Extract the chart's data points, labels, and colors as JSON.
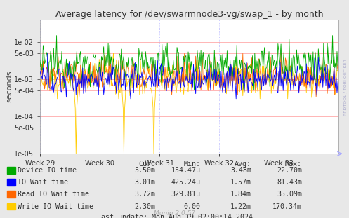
{
  "title": "Average latency for /dev/swarmnode3-vg/swap_1 - by month",
  "ylabel": "seconds",
  "x_labels": [
    "Week 29",
    "Week 30",
    "Week 31",
    "Week 32",
    "Week 33"
  ],
  "bg_color": "#e8e8e8",
  "plot_bg_color": "#ffffff",
  "grid_color_h": "#ffaaaa",
  "grid_color_v": "#aaaaff",
  "legend": [
    {
      "label": "Device IO time",
      "color": "#00aa00"
    },
    {
      "label": "IO Wait time",
      "color": "#0000ff"
    },
    {
      "label": "Read IO Wait time",
      "color": "#ff6600"
    },
    {
      "label": "Write IO Wait time",
      "color": "#ffcc00"
    }
  ],
  "stats": {
    "Device IO time": {
      "cur": "5.50m",
      "min": "154.47u",
      "avg": "3.48m",
      "max": "22.70m"
    },
    "IO Wait time": {
      "cur": "3.01m",
      "min": "425.24u",
      "avg": "1.57m",
      "max": "81.43m"
    },
    "Read IO Wait time": {
      "cur": "3.72m",
      "min": "329.81u",
      "avg": "1.84m",
      "max": "35.09m"
    },
    "Write IO Wait time": {
      "cur": "2.30m",
      "min": "0.00",
      "avg": "1.22m",
      "max": "170.34m"
    }
  },
  "last_update": "Last update: Mon Aug 19 02:00:14 2024",
  "munin_version": "Munin 2.0.57",
  "rrdtool_label": "RRDTOOL / TOBI OETIKER",
  "ylim_min": 1e-05,
  "ylim_max": 0.04,
  "n_points": 400
}
